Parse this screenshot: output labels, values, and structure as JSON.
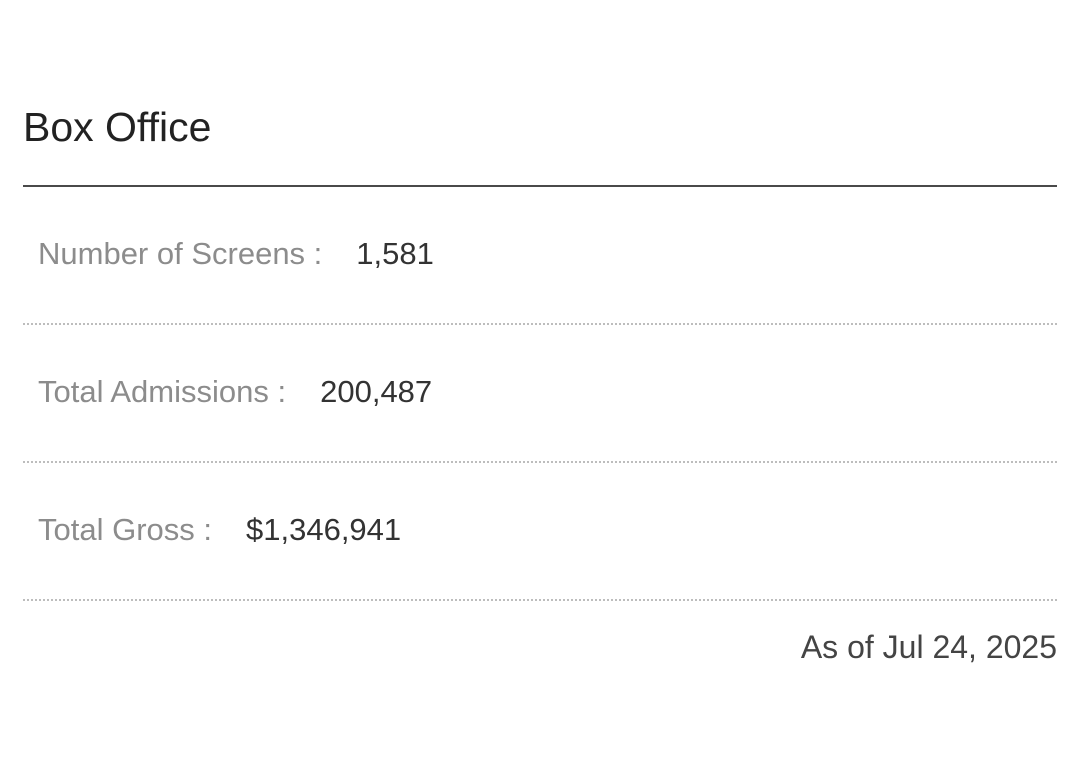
{
  "box_office": {
    "title": "Box Office",
    "rows": [
      {
        "label": "Number of Screens :",
        "value": "1,581"
      },
      {
        "label": "Total Admissions :",
        "value": "200,487"
      },
      {
        "label": "Total Gross :",
        "value": "$1,346,941"
      }
    ],
    "as_of": "As of Jul 24, 2025"
  },
  "colors": {
    "title": "#222222",
    "label": "#8c8c8c",
    "value": "#333333",
    "title_rule": "#4a4a4a",
    "row_rule": "#bdbdbd"
  }
}
